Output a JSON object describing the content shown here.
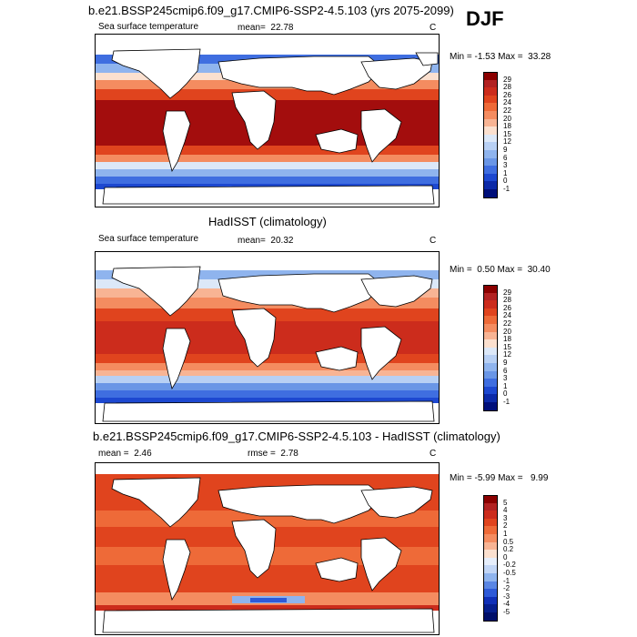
{
  "season": "DJF",
  "panels": [
    {
      "title": "b.e21.BSSP245cmip6.f09_g17.CMIP6-SSP2-4.5.103 (yrs 2075-2099)",
      "left_label": "Sea surface temperature",
      "stat_label": "mean=",
      "stat_value": "22.78",
      "unit": "C",
      "min_label": "Min =",
      "min_value": "-1.53",
      "max_label": "Max =",
      "max_value": "33.28",
      "colorbar_labels": [
        "29",
        "28",
        "26",
        "24",
        "22",
        "20",
        "18",
        "15",
        "12",
        "9",
        "6",
        "3",
        "1",
        "0",
        "-1"
      ],
      "colorbar_colors": [
        "#8b0000",
        "#b22222",
        "#cc2c1c",
        "#e0441e",
        "#ee6a38",
        "#f48c60",
        "#f8b494",
        "#fbe0cf",
        "#dce8f8",
        "#b8d0f4",
        "#8fb4ee",
        "#6a96e6",
        "#3f6ee0",
        "#1d48d0",
        "#0c2aa8",
        "#000f7a"
      ]
    },
    {
      "title": "HadISST (climatology)",
      "left_label": "Sea surface temperature",
      "stat_label": "mean=",
      "stat_value": "20.32",
      "unit": "C",
      "min_label": "Min =",
      "min_value": "0.50",
      "max_label": "Max =",
      "max_value": "30.40",
      "colorbar_labels": [
        "29",
        "28",
        "26",
        "24",
        "22",
        "20",
        "18",
        "15",
        "12",
        "9",
        "6",
        "3",
        "1",
        "0",
        "-1"
      ],
      "colorbar_colors": [
        "#8b0000",
        "#b22222",
        "#cc2c1c",
        "#e0441e",
        "#ee6a38",
        "#f48c60",
        "#f8b494",
        "#fbe0cf",
        "#dce8f8",
        "#b8d0f4",
        "#8fb4ee",
        "#6a96e6",
        "#3f6ee0",
        "#1d48d0",
        "#0c2aa8",
        "#000f7a"
      ]
    },
    {
      "title": "b.e21.BSSP245cmip6.f09_g17.CMIP6-SSP2-4.5.103 - HadISST (climatology)",
      "left_label": "mean =",
      "left_value": "2.46",
      "stat_label": "rmse =",
      "stat_value": "2.78",
      "unit": "C",
      "min_label": "Min =",
      "min_value": "-5.99",
      "max_label": "Max =",
      "max_value": "9.99",
      "colorbar_labels": [
        "5",
        "4",
        "3",
        "2",
        "1",
        "0.5",
        "0.2",
        "0",
        "-0.2",
        "-0.5",
        "-1",
        "-2",
        "-3",
        "-4",
        "-5"
      ],
      "colorbar_colors": [
        "#8b0000",
        "#b22222",
        "#cc2c1c",
        "#e0441e",
        "#ee6a38",
        "#f48c60",
        "#f8b494",
        "#fbe0cf",
        "#e6eefb",
        "#c2d6f6",
        "#8fb4ee",
        "#5a86e4",
        "#2e5ad8",
        "#1030b8",
        "#061f8e",
        "#000f6a"
      ]
    }
  ]
}
